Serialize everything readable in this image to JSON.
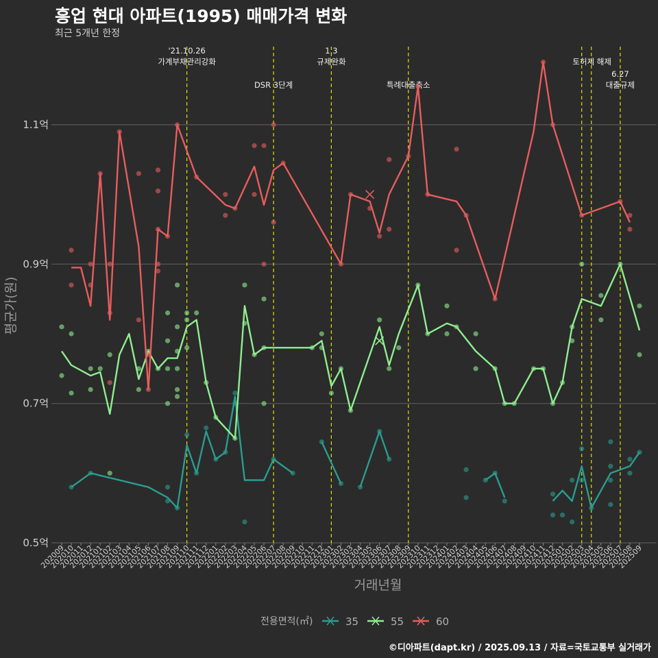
{
  "header": {
    "title": "흥업 현대 아파트(1995) 매매가격 변화",
    "subtitle": "최근 5개년 한정",
    "caption": "©디아파트(dapt.kr) / 2025.09.13 / 자료=국토교통부 실거래가"
  },
  "colors": {
    "s35": "#2a9d8f",
    "s55": "#90ee90",
    "s60": "#e85d5d",
    "event": "#e0e000",
    "grid": "#5a5a5a"
  },
  "chart_data": {
    "type": "line",
    "xlabel": "거래년월",
    "ylabel": "평균가(원)",
    "ylim": [
      0.5,
      1.22
    ],
    "yticks": [
      0.5,
      0.7,
      0.9,
      1.1
    ],
    "ytick_labels": [
      "0.5억",
      "0.7억",
      "0.9억",
      "1.1억"
    ],
    "grid": true,
    "categories": [
      "202009",
      "202010",
      "202011",
      "202012",
      "202101",
      "202102",
      "202103",
      "202104",
      "202105",
      "202106",
      "202107",
      "202108",
      "202109",
      "202110",
      "202111",
      "202112",
      "202201",
      "202202",
      "202203",
      "202204",
      "202205",
      "202206",
      "202207",
      "202208",
      "202209",
      "202210",
      "202211",
      "202212",
      "202301",
      "202302",
      "202303",
      "202304",
      "202305",
      "202306",
      "202307",
      "202308",
      "202309",
      "202310",
      "202311",
      "202312",
      "202401",
      "202402",
      "202403",
      "202404",
      "202405",
      "202406",
      "202407",
      "202408",
      "202409",
      "202410",
      "202411",
      "202412",
      "202501",
      "202502",
      "202503",
      "202504",
      "202505",
      "202506",
      "202507",
      "202508",
      "202509"
    ],
    "legend": {
      "title": "전용면적(㎡)",
      "position": "bottom",
      "entries": [
        "35",
        "55",
        "60"
      ]
    },
    "events": [
      {
        "x": 13,
        "label_lines": [
          "'21.10.26",
          "가계부채관리강화"
        ],
        "row": 0
      },
      {
        "x": 22,
        "label_lines": [
          "DSR 3단계"
        ],
        "row": 1
      },
      {
        "x": 28,
        "label_lines": [
          "1.3",
          "규제완화"
        ],
        "row": 0
      },
      {
        "x": 36,
        "label_lines": [
          "특례대출축소"
        ],
        "row": 1
      },
      {
        "x": 54,
        "label_lines": [
          "토허제 해제"
        ],
        "row": 0,
        "dx": 15
      },
      {
        "x": 55,
        "label_lines": [],
        "row": 0
      },
      {
        "x": 58,
        "label_lines": [
          "6.27",
          "대출규제"
        ],
        "row": 1
      }
    ],
    "series": [
      {
        "name": "35",
        "color_key": "s35",
        "line": [
          [
            1,
            0.58
          ],
          [
            3,
            0.6
          ],
          [
            9,
            0.58
          ],
          [
            11,
            0.565
          ],
          [
            12,
            0.55
          ],
          [
            13,
            0.64
          ],
          [
            14,
            0.6
          ],
          [
            15,
            0.66
          ],
          [
            16,
            0.62
          ],
          [
            17,
            0.63
          ],
          [
            18,
            0.71
          ],
          [
            19,
            0.59
          ],
          [
            21,
            0.59
          ],
          [
            22,
            0.62
          ],
          [
            24,
            0.6
          ],
          [
            null,
            null
          ],
          [
            27,
            0.645
          ],
          [
            29,
            0.585
          ],
          [
            null,
            null
          ],
          [
            31,
            0.58
          ],
          [
            33,
            0.66
          ],
          [
            34,
            0.62
          ],
          [
            null,
            null
          ],
          [
            44,
            0.59
          ],
          [
            45,
            0.6
          ],
          [
            46,
            0.565
          ],
          [
            null,
            null
          ],
          [
            51,
            0.56
          ],
          [
            52,
            0.575
          ],
          [
            53,
            0.56
          ],
          [
            54,
            0.61
          ],
          [
            55,
            0.55
          ],
          [
            57,
            0.6
          ],
          [
            59,
            0.61
          ],
          [
            60,
            0.63
          ]
        ],
        "points": [
          [
            1,
            0.58
          ],
          [
            3,
            0.6
          ],
          [
            11,
            0.58
          ],
          [
            11,
            0.56
          ],
          [
            12,
            0.55
          ],
          [
            13,
            0.655
          ],
          [
            14,
            0.6
          ],
          [
            15,
            0.665
          ],
          [
            16,
            0.62
          ],
          [
            17,
            0.63
          ],
          [
            18,
            0.715
          ],
          [
            18,
            0.7
          ],
          [
            19,
            0.53
          ],
          [
            22,
            0.62
          ],
          [
            24,
            0.6
          ],
          [
            27,
            0.645
          ],
          [
            29,
            0.585
          ],
          [
            31,
            0.58
          ],
          [
            33,
            0.66
          ],
          [
            34,
            0.62
          ],
          [
            42,
            0.605
          ],
          [
            42,
            0.565
          ],
          [
            44,
            0.59
          ],
          [
            45,
            0.6
          ],
          [
            46,
            0.56
          ],
          [
            51,
            0.57
          ],
          [
            51,
            0.54
          ],
          [
            52,
            0.54
          ],
          [
            53,
            0.53
          ],
          [
            53,
            0.59
          ],
          [
            54,
            0.635
          ],
          [
            54,
            0.59
          ],
          [
            55,
            0.55
          ],
          [
            57,
            0.645
          ],
          [
            57,
            0.61
          ],
          [
            57,
            0.59
          ],
          [
            57,
            0.555
          ],
          [
            59,
            0.62
          ],
          [
            59,
            0.6
          ],
          [
            60,
            0.63
          ]
        ]
      },
      {
        "name": "55",
        "color_key": "s55",
        "line": [
          [
            0,
            0.775
          ],
          [
            1,
            0.755
          ],
          [
            3,
            0.74
          ],
          [
            4,
            0.745
          ],
          [
            5,
            0.685
          ],
          [
            6,
            0.77
          ],
          [
            7,
            0.8
          ],
          [
            8,
            0.735
          ],
          [
            9,
            0.775
          ],
          [
            10,
            0.75
          ],
          [
            11,
            0.765
          ],
          [
            12,
            0.765
          ],
          [
            13,
            0.81
          ],
          [
            14,
            0.82
          ],
          [
            15,
            0.73
          ],
          [
            16,
            0.68
          ],
          [
            18,
            0.65
          ],
          [
            19,
            0.84
          ],
          [
            20,
            0.77
          ],
          [
            21,
            0.78
          ],
          [
            26,
            0.78
          ],
          [
            27,
            0.79
          ],
          [
            28,
            0.725
          ],
          [
            29,
            0.75
          ],
          [
            30,
            0.69
          ],
          [
            33,
            0.81
          ],
          [
            34,
            0.755
          ],
          [
            35,
            0.8
          ],
          [
            37,
            0.87
          ],
          [
            38,
            0.8
          ],
          [
            40,
            0.815
          ],
          [
            41,
            0.81
          ],
          [
            43,
            0.775
          ],
          [
            45,
            0.75
          ],
          [
            46,
            0.7
          ],
          [
            47,
            0.7
          ],
          [
            49,
            0.75
          ],
          [
            50,
            0.75
          ],
          [
            51,
            0.7
          ],
          [
            52,
            0.73
          ],
          [
            53,
            0.81
          ],
          [
            54,
            0.85
          ],
          [
            56,
            0.84
          ],
          [
            58,
            0.9
          ],
          [
            60,
            0.805
          ]
        ],
        "points": [
          [
            0,
            0.81
          ],
          [
            0,
            0.74
          ],
          [
            1,
            0.8
          ],
          [
            1,
            0.715
          ],
          [
            3,
            0.75
          ],
          [
            3,
            0.72
          ],
          [
            4,
            0.75
          ],
          [
            5,
            0.77
          ],
          [
            5,
            0.6
          ],
          [
            8,
            0.72
          ],
          [
            8,
            0.75
          ],
          [
            9,
            0.775
          ],
          [
            10,
            0.75
          ],
          [
            11,
            0.83
          ],
          [
            11,
            0.79
          ],
          [
            11,
            0.75
          ],
          [
            11,
            0.7
          ],
          [
            12,
            0.87
          ],
          [
            12,
            0.81
          ],
          [
            12,
            0.775
          ],
          [
            12,
            0.75
          ],
          [
            12,
            0.72
          ],
          [
            12,
            0.71
          ],
          [
            13,
            0.83
          ],
          [
            13,
            0.82
          ],
          [
            13,
            0.78
          ],
          [
            14,
            0.83
          ],
          [
            15,
            0.73
          ],
          [
            16,
            0.68
          ],
          [
            18,
            0.65
          ],
          [
            19,
            0.87
          ],
          [
            19,
            0.815
          ],
          [
            20,
            0.77
          ],
          [
            21,
            0.85
          ],
          [
            21,
            0.78
          ],
          [
            21,
            0.7
          ],
          [
            26,
            0.78
          ],
          [
            27,
            0.8
          ],
          [
            27,
            0.78
          ],
          [
            28,
            0.715
          ],
          [
            29,
            0.75
          ],
          [
            30,
            0.69
          ],
          [
            33,
            0.82
          ],
          [
            34,
            0.75
          ],
          [
            35,
            0.78
          ],
          [
            37,
            0.87
          ],
          [
            38,
            0.8
          ],
          [
            40,
            0.84
          ],
          [
            40,
            0.8
          ],
          [
            41,
            0.81
          ],
          [
            43,
            0.8
          ],
          [
            43,
            0.75
          ],
          [
            45,
            0.75
          ],
          [
            46,
            0.7
          ],
          [
            47,
            0.7
          ],
          [
            49,
            0.75
          ],
          [
            50,
            0.75
          ],
          [
            51,
            0.7
          ],
          [
            52,
            0.73
          ],
          [
            53,
            0.81
          ],
          [
            53,
            0.79
          ],
          [
            54,
            0.9
          ],
          [
            56,
            0.855
          ],
          [
            56,
            0.82
          ],
          [
            58,
            0.9
          ],
          [
            60,
            0.84
          ],
          [
            60,
            0.77
          ]
        ],
        "cross": [
          33,
          0.79
        ]
      },
      {
        "name": "60",
        "color_key": "s60",
        "line": [
          [
            1,
            0.895
          ],
          [
            2,
            0.895
          ],
          [
            3,
            0.84
          ],
          [
            4,
            1.03
          ],
          [
            5,
            0.82
          ],
          [
            6,
            1.09
          ],
          [
            8,
            0.925
          ],
          [
            9,
            0.72
          ],
          [
            10,
            0.95
          ],
          [
            11,
            0.94
          ],
          [
            12,
            1.1
          ],
          [
            14,
            1.025
          ],
          [
            17,
            0.985
          ],
          [
            18,
            0.98
          ],
          [
            20,
            1.04
          ],
          [
            21,
            0.985
          ],
          [
            22,
            1.035
          ],
          [
            23,
            1.045
          ],
          [
            29,
            0.9
          ],
          [
            30,
            1.0
          ],
          [
            32,
            0.99
          ],
          [
            33,
            0.945
          ],
          [
            34,
            1.0
          ],
          [
            36,
            1.055
          ],
          [
            37,
            1.155
          ],
          [
            38,
            1.0
          ],
          [
            41,
            0.99
          ],
          [
            42,
            0.97
          ],
          [
            45,
            0.85
          ],
          [
            49,
            1.09
          ],
          [
            50,
            1.19
          ],
          [
            51,
            1.1
          ],
          [
            54,
            0.97
          ],
          [
            58,
            0.99
          ],
          [
            59,
            0.96
          ]
        ],
        "points": [
          [
            1,
            0.92
          ],
          [
            1,
            0.87
          ],
          [
            3,
            0.9
          ],
          [
            3,
            0.87
          ],
          [
            4,
            1.03
          ],
          [
            5,
            0.9
          ],
          [
            5,
            0.83
          ],
          [
            5,
            0.73
          ],
          [
            6,
            1.09
          ],
          [
            8,
            1.03
          ],
          [
            8,
            0.82
          ],
          [
            9,
            0.77
          ],
          [
            9,
            0.72
          ],
          [
            10,
            1.035
          ],
          [
            10,
            1.005
          ],
          [
            10,
            0.95
          ],
          [
            10,
            0.9
          ],
          [
            10,
            0.89
          ],
          [
            11,
            0.94
          ],
          [
            12,
            1.1
          ],
          [
            14,
            1.025
          ],
          [
            17,
            1.0
          ],
          [
            17,
            0.97
          ],
          [
            18,
            0.98
          ],
          [
            20,
            1.07
          ],
          [
            20,
            1.0
          ],
          [
            21,
            1.07
          ],
          [
            21,
            0.9
          ],
          [
            22,
            1.1
          ],
          [
            22,
            0.96
          ],
          [
            23,
            1.045
          ],
          [
            29,
            0.9
          ],
          [
            30,
            1.0
          ],
          [
            32,
            0.98
          ],
          [
            33,
            0.94
          ],
          [
            34,
            0.95
          ],
          [
            34,
            1.05
          ],
          [
            36,
            1.055
          ],
          [
            37,
            1.155
          ],
          [
            38,
            1.0
          ],
          [
            41,
            1.065
          ],
          [
            41,
            0.92
          ],
          [
            42,
            0.97
          ],
          [
            45,
            0.85
          ],
          [
            50,
            1.19
          ],
          [
            51,
            1.1
          ],
          [
            54,
            0.97
          ],
          [
            58,
            0.99
          ],
          [
            59,
            0.97
          ],
          [
            59,
            0.95
          ]
        ],
        "cross": [
          32,
          1.0
        ]
      }
    ]
  }
}
